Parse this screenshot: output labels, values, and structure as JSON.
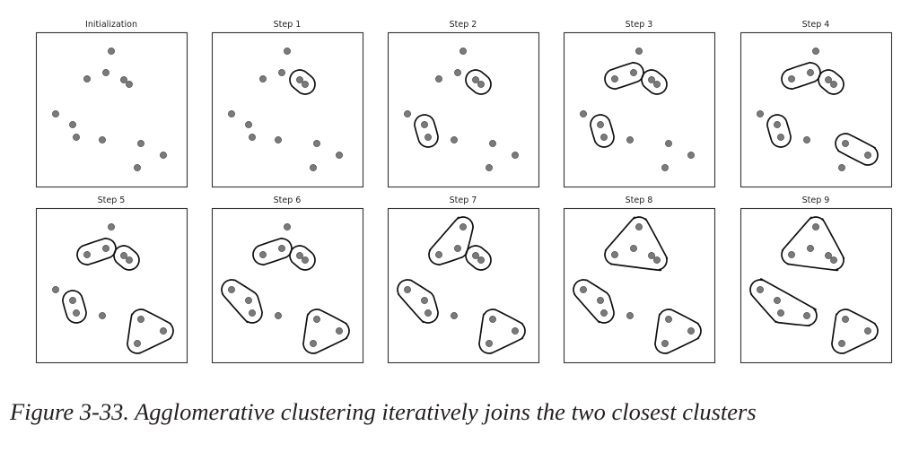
{
  "figure": {
    "caption": "Figure 3-33. Agglomerative clustering iteratively joins the two closest clusters",
    "panels": [
      {
        "title": "Initialization"
      },
      {
        "title": "Step 1"
      },
      {
        "title": "Step 2"
      },
      {
        "title": "Step 3"
      },
      {
        "title": "Step 4"
      },
      {
        "title": "Step 5"
      },
      {
        "title": "Step 6"
      },
      {
        "title": "Step 7"
      },
      {
        "title": "Step 8"
      },
      {
        "title": "Step 9"
      }
    ],
    "colors": {
      "point_fill": "#7a7a7a",
      "point_stroke": "#3a3a3a",
      "cluster_outline": "#111111",
      "axes_frame": "#333333"
    }
  }
}
